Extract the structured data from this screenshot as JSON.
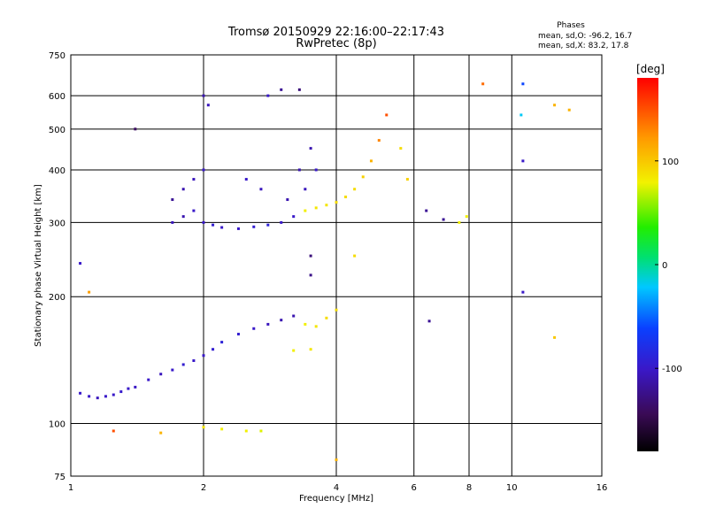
{
  "chart_data": {
    "type": "scatter",
    "title": "Tromsø 20150929 22:16:00–22:17:43",
    "subtitle": "RwPretec (8p)",
    "stats": {
      "heading": "Phases",
      "line1": "mean, sd,O: -96.2, 16.7",
      "line2": "mean, sd,X:  83.2, 17.8"
    },
    "xlabel": "Frequency [MHz]",
    "ylabel": "Stationary phase Virtual Height [km]",
    "x_scale": "log",
    "y_scale": "log",
    "xlim": [
      1,
      16
    ],
    "ylim": [
      75,
      750
    ],
    "x_ticks": [
      1,
      2,
      4,
      6,
      8,
      10,
      16
    ],
    "y_ticks": [
      75,
      100,
      200,
      300,
      400,
      500,
      600,
      750
    ],
    "x_grid": [
      2,
      4,
      6,
      8,
      10
    ],
    "y_grid": [
      100,
      200,
      300,
      400,
      500,
      600
    ],
    "grid": true,
    "colorbar": {
      "label": "[deg]",
      "range": [
        -180,
        180
      ],
      "ticks": [
        100,
        0,
        -100
      ]
    },
    "series": [
      {
        "values": [
          {
            "x": 1.05,
            "y": 118,
            "p": -100
          },
          {
            "x": 1.1,
            "y": 116,
            "p": -100
          },
          {
            "x": 1.15,
            "y": 115,
            "p": -105
          },
          {
            "x": 1.2,
            "y": 116,
            "p": -100
          },
          {
            "x": 1.25,
            "y": 117,
            "p": -100
          },
          {
            "x": 1.3,
            "y": 119,
            "p": -98
          },
          {
            "x": 1.35,
            "y": 121,
            "p": -100
          },
          {
            "x": 1.4,
            "y": 122,
            "p": -102
          },
          {
            "x": 1.5,
            "y": 127,
            "p": -100
          },
          {
            "x": 1.6,
            "y": 131,
            "p": -105
          },
          {
            "x": 1.7,
            "y": 134,
            "p": -100
          },
          {
            "x": 1.8,
            "y": 138,
            "p": -95
          },
          {
            "x": 1.9,
            "y": 141,
            "p": -100
          },
          {
            "x": 2.0,
            "y": 145,
            "p": -100
          },
          {
            "x": 2.1,
            "y": 150,
            "p": -95
          },
          {
            "x": 2.2,
            "y": 156,
            "p": -90
          },
          {
            "x": 2.4,
            "y": 163,
            "p": -95
          },
          {
            "x": 2.6,
            "y": 168,
            "p": -100
          },
          {
            "x": 2.8,
            "y": 172,
            "p": -105
          },
          {
            "x": 3.0,
            "y": 176,
            "p": -110
          },
          {
            "x": 3.2,
            "y": 180,
            "p": -110
          },
          {
            "x": 3.4,
            "y": 172,
            "p": 80
          },
          {
            "x": 3.6,
            "y": 170,
            "p": 85
          },
          {
            "x": 3.8,
            "y": 178,
            "p": 90
          },
          {
            "x": 4.0,
            "y": 186,
            "p": 90
          },
          {
            "x": 3.2,
            "y": 149,
            "p": 80
          },
          {
            "x": 3.5,
            "y": 150,
            "p": 85
          },
          {
            "x": 2.0,
            "y": 98,
            "p": 85
          },
          {
            "x": 2.2,
            "y": 97,
            "p": 80
          },
          {
            "x": 2.5,
            "y": 96,
            "p": 80
          },
          {
            "x": 2.7,
            "y": 96,
            "p": 75
          },
          {
            "x": 1.6,
            "y": 95,
            "p": 110
          },
          {
            "x": 1.25,
            "y": 96,
            "p": 150
          },
          {
            "x": 1.7,
            "y": 300,
            "p": -105
          },
          {
            "x": 1.8,
            "y": 310,
            "p": -110
          },
          {
            "x": 1.9,
            "y": 320,
            "p": -100
          },
          {
            "x": 2.0,
            "y": 300,
            "p": -100
          },
          {
            "x": 2.1,
            "y": 296,
            "p": -95
          },
          {
            "x": 2.2,
            "y": 292,
            "p": -100
          },
          {
            "x": 2.4,
            "y": 290,
            "p": -100
          },
          {
            "x": 2.6,
            "y": 293,
            "p": -95
          },
          {
            "x": 2.8,
            "y": 296,
            "p": -90
          },
          {
            "x": 3.0,
            "y": 300,
            "p": -100
          },
          {
            "x": 3.2,
            "y": 310,
            "p": -100
          },
          {
            "x": 3.4,
            "y": 320,
            "p": 80
          },
          {
            "x": 3.6,
            "y": 325,
            "p": 85
          },
          {
            "x": 3.8,
            "y": 330,
            "p": 85
          },
          {
            "x": 4.0,
            "y": 335,
            "p": 90
          },
          {
            "x": 4.2,
            "y": 345,
            "p": 90
          },
          {
            "x": 4.4,
            "y": 360,
            "p": 90
          },
          {
            "x": 4.6,
            "y": 385,
            "p": 95
          },
          {
            "x": 4.8,
            "y": 420,
            "p": 110
          },
          {
            "x": 5.0,
            "y": 470,
            "p": 130
          },
          {
            "x": 5.2,
            "y": 540,
            "p": 150
          },
          {
            "x": 1.8,
            "y": 360,
            "p": -110
          },
          {
            "x": 1.9,
            "y": 380,
            "p": -105
          },
          {
            "x": 2.0,
            "y": 400,
            "p": -100
          },
          {
            "x": 1.7,
            "y": 340,
            "p": -120
          },
          {
            "x": 2.0,
            "y": 600,
            "p": -110
          },
          {
            "x": 2.05,
            "y": 570,
            "p": -105
          },
          {
            "x": 2.8,
            "y": 600,
            "p": -100
          },
          {
            "x": 3.0,
            "y": 620,
            "p": -120
          },
          {
            "x": 3.3,
            "y": 620,
            "p": -130
          },
          {
            "x": 3.5,
            "y": 450,
            "p": -110
          },
          {
            "x": 3.6,
            "y": 400,
            "p": -100
          },
          {
            "x": 3.5,
            "y": 250,
            "p": -130
          },
          {
            "x": 3.5,
            "y": 225,
            "p": -125
          },
          {
            "x": 5.6,
            "y": 450,
            "p": 90
          },
          {
            "x": 5.8,
            "y": 380,
            "p": 95
          },
          {
            "x": 6.4,
            "y": 320,
            "p": -120
          },
          {
            "x": 7.0,
            "y": 305,
            "p": -120
          },
          {
            "x": 7.6,
            "y": 300,
            "p": 80
          },
          {
            "x": 7.9,
            "y": 310,
            "p": 80
          },
          {
            "x": 8.6,
            "y": 640,
            "p": 140
          },
          {
            "x": 10.6,
            "y": 640,
            "p": -60
          },
          {
            "x": 10.6,
            "y": 420,
            "p": -100
          },
          {
            "x": 10.5,
            "y": 540,
            "p": -20
          },
          {
            "x": 12.5,
            "y": 570,
            "p": 110
          },
          {
            "x": 13.5,
            "y": 555,
            "p": 110
          },
          {
            "x": 12.5,
            "y": 160,
            "p": 100
          },
          {
            "x": 10.6,
            "y": 205,
            "p": -100
          },
          {
            "x": 6.5,
            "y": 175,
            "p": -120
          },
          {
            "x": 1.05,
            "y": 240,
            "p": -100
          },
          {
            "x": 1.1,
            "y": 205,
            "p": 120
          },
          {
            "x": 1.4,
            "y": 500,
            "p": -140
          },
          {
            "x": 4.0,
            "y": 82,
            "p": 110
          },
          {
            "x": 4.4,
            "y": 250,
            "p": 90
          },
          {
            "x": 2.5,
            "y": 380,
            "p": -100
          },
          {
            "x": 2.7,
            "y": 360,
            "p": -105
          },
          {
            "x": 3.1,
            "y": 340,
            "p": -110
          },
          {
            "x": 3.3,
            "y": 400,
            "p": -110
          },
          {
            "x": 3.4,
            "y": 360,
            "p": -105
          }
        ]
      }
    ]
  }
}
